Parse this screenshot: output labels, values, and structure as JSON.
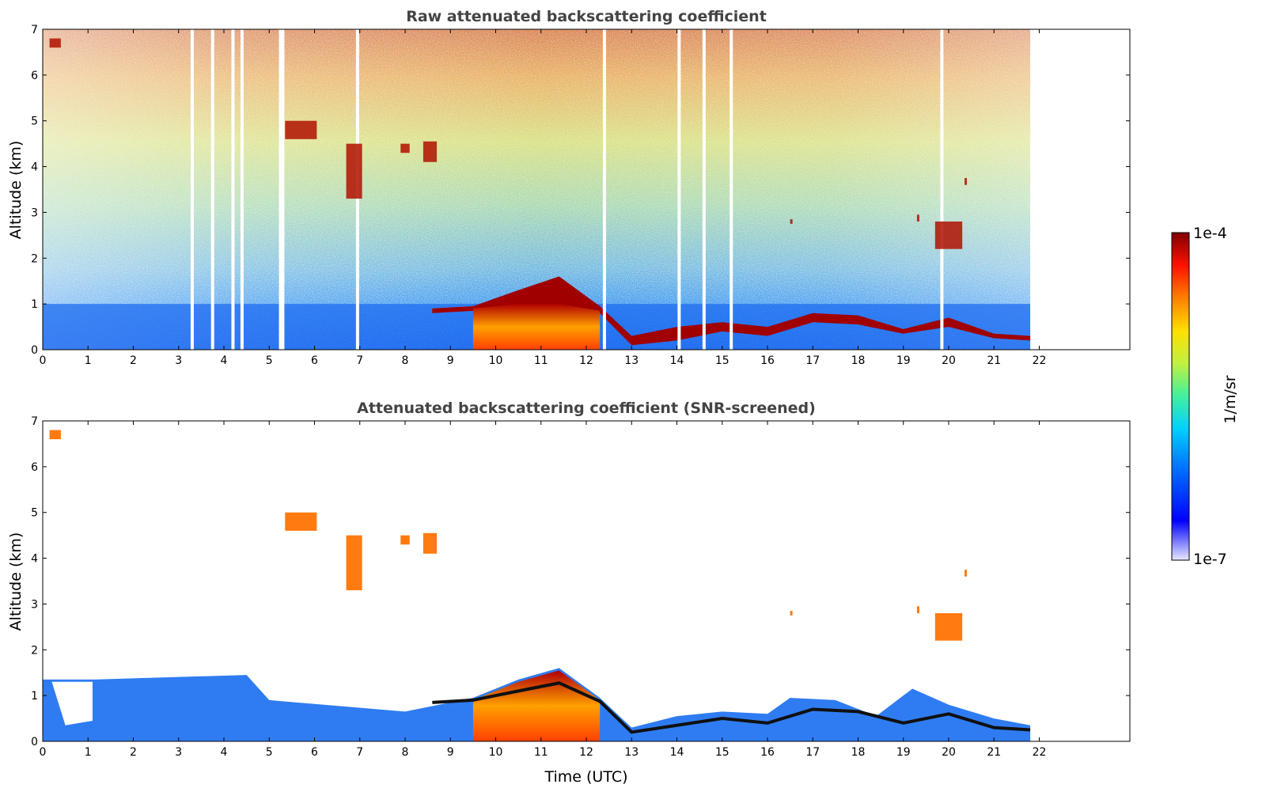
{
  "chart_data": [
    {
      "type": "heatmap",
      "title": "Raw attenuated backscattering coefficient",
      "xlabel": "",
      "ylabel": "Altitude (km)",
      "xlim": [
        0,
        24
      ],
      "ylim": [
        0,
        7
      ],
      "xticks": [
        "0",
        "1",
        "2",
        "3",
        "4",
        "5",
        "6",
        "7",
        "8",
        "9",
        "10",
        "11",
        "12",
        "13",
        "14",
        "15",
        "16",
        "17",
        "18",
        "19",
        "20",
        "21",
        "22"
      ],
      "yticks": [
        "0",
        "1",
        "2",
        "3",
        "4",
        "5",
        "6",
        "7"
      ],
      "data_end_hour": 21.8,
      "cloud_layer": [
        {
          "x": 8.6,
          "base": 0.8,
          "top": 0.9
        },
        {
          "x": 9.5,
          "base": 0.85,
          "top": 0.95
        },
        {
          "x": 10.5,
          "base": 0.9,
          "top": 1.3
        },
        {
          "x": 11.4,
          "base": 0.95,
          "top": 1.6
        },
        {
          "x": 12.3,
          "base": 0.8,
          "top": 0.95
        },
        {
          "x": 13.0,
          "base": 0.1,
          "top": 0.3
        },
        {
          "x": 14.0,
          "base": 0.2,
          "top": 0.5
        },
        {
          "x": 15.0,
          "base": 0.4,
          "top": 0.6
        },
        {
          "x": 16.0,
          "base": 0.3,
          "top": 0.5
        },
        {
          "x": 17.0,
          "base": 0.6,
          "top": 0.8
        },
        {
          "x": 18.0,
          "base": 0.55,
          "top": 0.75
        },
        {
          "x": 19.0,
          "base": 0.35,
          "top": 0.45
        },
        {
          "x": 20.0,
          "base": 0.5,
          "top": 0.7
        },
        {
          "x": 21.0,
          "base": 0.25,
          "top": 0.35
        },
        {
          "x": 21.8,
          "base": 0.2,
          "top": 0.3
        }
      ],
      "gaps_hour": [
        3.3,
        3.75,
        4.2,
        4.4,
        5.25,
        5.3,
        6.95,
        12.4,
        14.05,
        14.6,
        15.2,
        19.85
      ]
    },
    {
      "type": "heatmap",
      "title": "Attenuated backscattering coefficient (SNR-screened)",
      "xlabel": "Time (UTC)",
      "ylabel": "Altitude (km)",
      "xlim": [
        0,
        24
      ],
      "ylim": [
        0,
        7
      ],
      "xticks": [
        "0",
        "1",
        "2",
        "3",
        "4",
        "5",
        "6",
        "7",
        "8",
        "9",
        "10",
        "11",
        "12",
        "13",
        "14",
        "15",
        "16",
        "17",
        "18",
        "19",
        "20",
        "21",
        "22"
      ],
      "yticks": [
        "0",
        "1",
        "2",
        "3",
        "4",
        "5",
        "6",
        "7"
      ],
      "boundary_layer_top": [
        {
          "x": 0.0,
          "y": 1.35
        },
        {
          "x": 1.1,
          "y": 1.35
        },
        {
          "x": 4.5,
          "y": 1.45
        },
        {
          "x": 5.0,
          "y": 0.9
        },
        {
          "x": 8.0,
          "y": 0.65
        },
        {
          "x": 9.5,
          "y": 0.95
        },
        {
          "x": 10.5,
          "y": 1.35
        },
        {
          "x": 11.4,
          "y": 1.6
        },
        {
          "x": 12.3,
          "y": 0.95
        },
        {
          "x": 13.0,
          "y": 0.3
        },
        {
          "x": 14.0,
          "y": 0.55
        },
        {
          "x": 15.0,
          "y": 0.65
        },
        {
          "x": 16.0,
          "y": 0.6
        },
        {
          "x": 16.5,
          "y": 0.95
        },
        {
          "x": 17.5,
          "y": 0.9
        },
        {
          "x": 18.4,
          "y": 0.55
        },
        {
          "x": 19.2,
          "y": 1.15
        },
        {
          "x": 20.0,
          "y": 0.8
        },
        {
          "x": 21.0,
          "y": 0.5
        },
        {
          "x": 21.8,
          "y": 0.35
        }
      ],
      "aerosol_features": [
        {
          "x0": 5.35,
          "x1": 6.05,
          "y0": 4.6,
          "y1": 5.0
        },
        {
          "x0": 6.7,
          "x1": 7.05,
          "y0": 3.3,
          "y1": 4.5
        },
        {
          "x0": 7.9,
          "x1": 8.1,
          "y0": 4.3,
          "y1": 4.5
        },
        {
          "x0": 8.4,
          "x1": 8.7,
          "y0": 4.1,
          "y1": 4.55
        },
        {
          "x0": 19.3,
          "x1": 19.35,
          "y0": 2.8,
          "y1": 2.95
        },
        {
          "x0": 19.7,
          "x1": 20.3,
          "y0": 2.2,
          "y1": 2.8
        },
        {
          "x0": 20.35,
          "x1": 20.4,
          "y0": 3.6,
          "y1": 3.75
        },
        {
          "x0": 0.15,
          "x1": 0.4,
          "y0": 6.6,
          "y1": 6.8
        },
        {
          "x0": 16.5,
          "x1": 16.55,
          "y0": 2.75,
          "y1": 2.85
        }
      ]
    }
  ],
  "colorbar": {
    "label": "1/m/sr",
    "max_label": "1e-4",
    "min_label": "1e-7",
    "scale": "log",
    "colormap": "jet"
  }
}
